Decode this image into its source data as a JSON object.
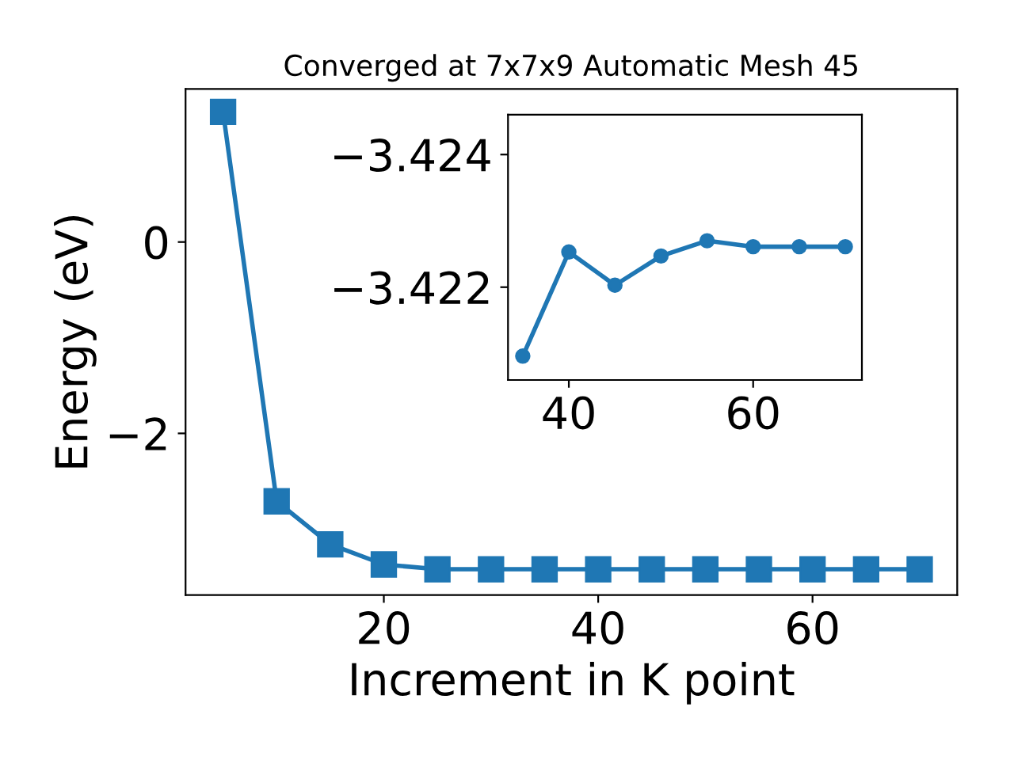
{
  "chart_data": [
    {
      "type": "line",
      "title": "Converged at 7x7x9 Automatic Mesh 45",
      "xlabel": "Increment in K point",
      "ylabel": "Energy (eV)",
      "x": [
        5,
        10,
        15,
        20,
        25,
        30,
        35,
        40,
        45,
        50,
        55,
        60,
        65,
        70
      ],
      "series": [
        {
          "color": "#1f77b4",
          "values": [
            1.36,
            -2.71,
            -3.16,
            -3.37,
            -3.42,
            -3.42,
            -3.42,
            -3.42,
            -3.42,
            -3.42,
            -3.42,
            -3.42,
            -3.42,
            -3.42
          ]
        }
      ],
      "xlim": [
        1.5,
        73.5
      ],
      "ylim": [
        -3.69,
        1.6
      ],
      "xticks": [
        20,
        40,
        60
      ],
      "yticks": [
        {
          "value": -2,
          "label": "−2"
        },
        0
      ],
      "marker": "square",
      "line_style": "solid",
      "grid": false,
      "legend": false
    },
    {
      "type": "line",
      "x": [
        35,
        40,
        45,
        50,
        55,
        60,
        65,
        70
      ],
      "series": [
        {
          "color": "#1f77b4",
          "values": [
            -3.42096,
            -3.42253,
            -3.42203,
            -3.42247,
            -3.4227,
            -3.42261,
            -3.42261,
            -3.42261
          ]
        }
      ],
      "xlim": [
        33.4,
        71.8
      ],
      "ylim": [
        -3.4206,
        -3.4246
      ],
      "xticks": [
        40,
        60
      ],
      "yticks": [
        {
          "value": -3.424,
          "label": "−3.424"
        },
        {
          "value": -3.422,
          "label": "−3.422"
        }
      ],
      "marker": "circle",
      "line_style": "solid",
      "grid": false,
      "legend": false
    }
  ]
}
